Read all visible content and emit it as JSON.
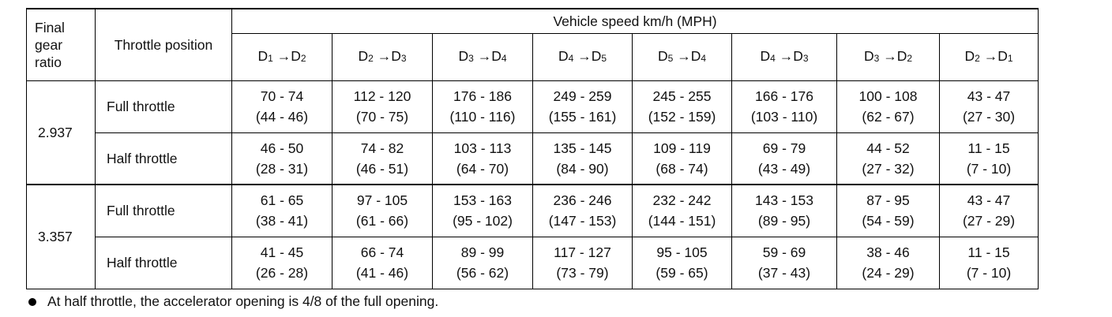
{
  "header": {
    "final_gear_ratio": [
      "Final",
      "gear",
      "ratio"
    ],
    "throttle_position": "Throttle position",
    "vehicle_speed": "Vehicle speed km/h (MPH)",
    "gear_letter": "D",
    "arrow": "→",
    "shifts": [
      {
        "from": "1",
        "to": "2"
      },
      {
        "from": "2",
        "to": "3"
      },
      {
        "from": "3",
        "to": "4"
      },
      {
        "from": "4",
        "to": "5"
      },
      {
        "from": "5",
        "to": "4"
      },
      {
        "from": "4",
        "to": "3"
      },
      {
        "from": "3",
        "to": "2"
      },
      {
        "from": "2",
        "to": "1"
      }
    ]
  },
  "groups": [
    {
      "ratio": "2.937",
      "rows": [
        {
          "throttle": "Full throttle",
          "cells": [
            [
              "70 - 74",
              "(44 - 46)"
            ],
            [
              "112 - 120",
              "(70 - 75)"
            ],
            [
              "176 - 186",
              "(110 - 116)"
            ],
            [
              "249 - 259",
              "(155 - 161)"
            ],
            [
              "245 - 255",
              "(152 - 159)"
            ],
            [
              "166 - 176",
              "(103 - 110)"
            ],
            [
              "100 - 108",
              "(62 - 67)"
            ],
            [
              "43 - 47",
              "(27 - 30)"
            ]
          ]
        },
        {
          "throttle": "Half throttle",
          "cells": [
            [
              "46 - 50",
              "(28 - 31)"
            ],
            [
              "74 - 82",
              "(46 - 51)"
            ],
            [
              "103 - 113",
              "(64 - 70)"
            ],
            [
              "135 - 145",
              "(84 - 90)"
            ],
            [
              "109 - 119",
              "(68 - 74)"
            ],
            [
              "69 - 79",
              "(43 - 49)"
            ],
            [
              "44 - 52",
              "(27 - 32)"
            ],
            [
              "11 - 15",
              "(7 - 10)"
            ]
          ]
        }
      ]
    },
    {
      "ratio": "3.357",
      "rows": [
        {
          "throttle": "Full throttle",
          "cells": [
            [
              "61 - 65",
              "(38 - 41)"
            ],
            [
              "97 - 105",
              "(61 - 66)"
            ],
            [
              "153 - 163",
              "(95 - 102)"
            ],
            [
              "236 - 246",
              "(147 - 153)"
            ],
            [
              "232 - 242",
              "(144 - 151)"
            ],
            [
              "143 - 153",
              "(89 - 95)"
            ],
            [
              "87 - 95",
              "(54 - 59)"
            ],
            [
              "43 - 47",
              "(27 - 29)"
            ]
          ]
        },
        {
          "throttle": "Half throttle",
          "cells": [
            [
              "41 - 45",
              "(26 - 28)"
            ],
            [
              "66 - 74",
              "(41 - 46)"
            ],
            [
              "89 - 99",
              "(56 - 62)"
            ],
            [
              "117 - 127",
              "(73 - 79)"
            ],
            [
              "95 - 105",
              "(59 - 65)"
            ],
            [
              "59 - 69",
              "(37 - 43)"
            ],
            [
              "38 - 46",
              "(24 - 29)"
            ],
            [
              "11 - 15",
              "(7 - 10)"
            ]
          ]
        }
      ]
    }
  ],
  "note": "At half throttle, the accelerator opening is 4/8 of the full opening."
}
